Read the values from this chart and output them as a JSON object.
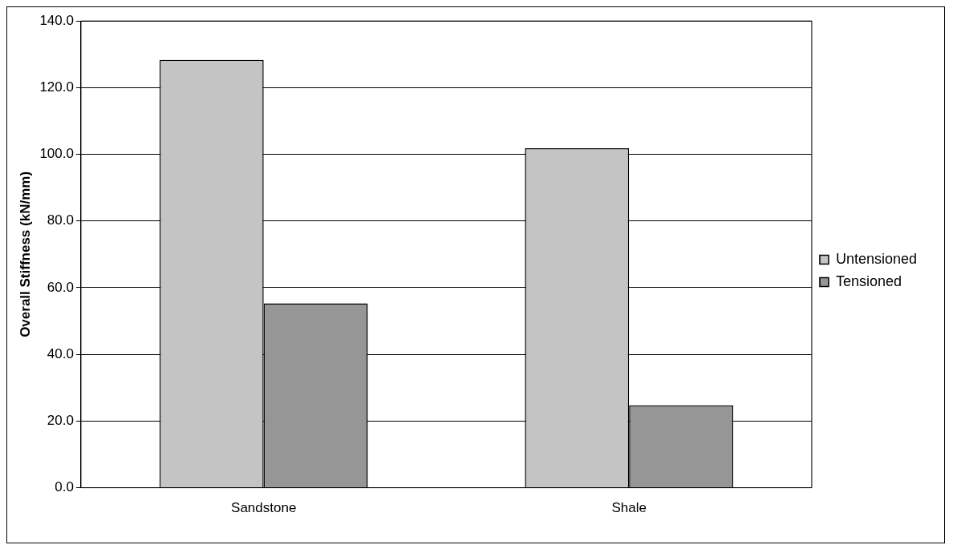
{
  "chart_data": {
    "type": "bar",
    "ylabel": "Overall Stiffness (kN/mm)",
    "categories": [
      "Sandstone",
      "Shale"
    ],
    "series": [
      {
        "name": "Untensioned",
        "color": "#c4c4c4",
        "values": [
          128.3,
          101.8
        ]
      },
      {
        "name": "Tensioned",
        "color": "#969696",
        "values": [
          55.3,
          24.7
        ]
      }
    ],
    "ylim": [
      0,
      140
    ],
    "yticks": [
      {
        "value": 0,
        "label": "0.0"
      },
      {
        "value": 20,
        "label": "20.0"
      },
      {
        "value": 40,
        "label": "40.0"
      },
      {
        "value": 60,
        "label": "60.0"
      },
      {
        "value": 80,
        "label": "80.0"
      },
      {
        "value": 100,
        "label": "100.0"
      },
      {
        "value": 120,
        "label": "120.0"
      },
      {
        "value": 140,
        "label": "140.0"
      }
    ],
    "grid": "y",
    "legend": "right"
  }
}
